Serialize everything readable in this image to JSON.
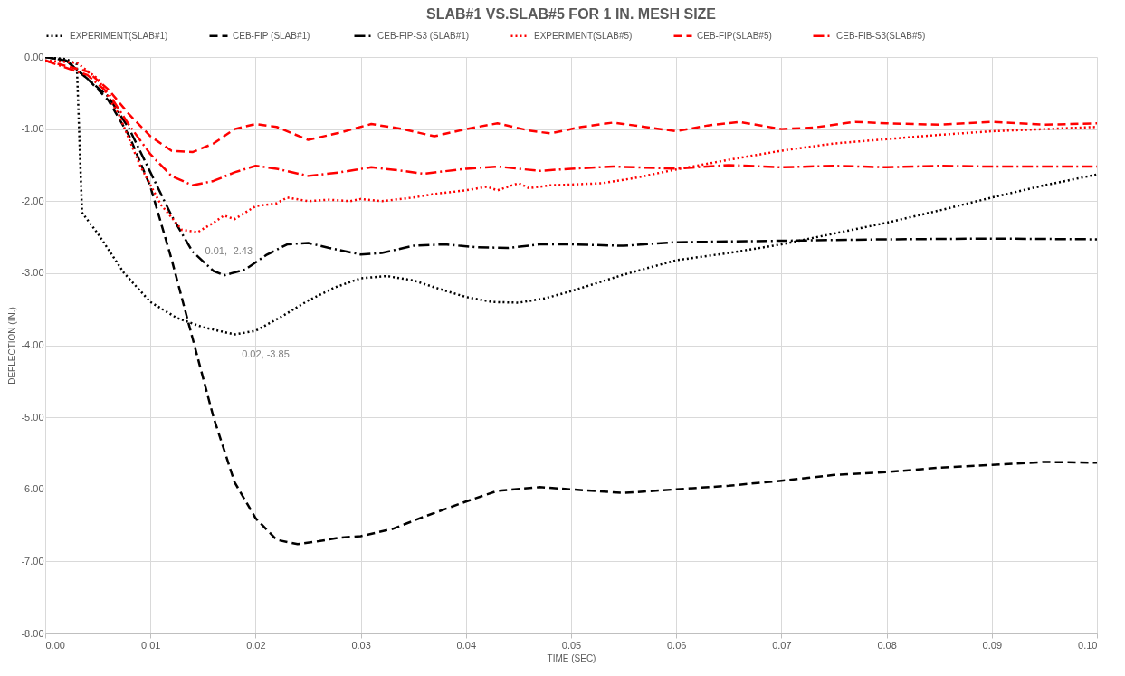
{
  "chart_data": {
    "type": "line",
    "title": "SLAB#1 VS.SLAB#5 FOR 1 IN. MESH SIZE",
    "xlabel": "TIME (SEC)",
    "ylabel": "DEFLECTION (IN.)",
    "xlim": [
      0,
      0.1
    ],
    "ylim": [
      -8,
      0
    ],
    "grid": true,
    "legend": "top",
    "xticks": [
      {
        "value": 0,
        "label": "0.00"
      },
      {
        "value": 0.01,
        "label": "0.01"
      },
      {
        "value": 0.02,
        "label": "0.02"
      },
      {
        "value": 0.03,
        "label": "0.03"
      },
      {
        "value": 0.04,
        "label": "0.04"
      },
      {
        "value": 0.05,
        "label": "0.05"
      },
      {
        "value": 0.06,
        "label": "0.06"
      },
      {
        "value": 0.07,
        "label": "0.07"
      },
      {
        "value": 0.08,
        "label": "0.08"
      },
      {
        "value": 0.09,
        "label": "0.09"
      },
      {
        "value": 0.1,
        "label": "0.10"
      }
    ],
    "yticks": [
      {
        "value": 0,
        "label": "0.00"
      },
      {
        "value": -1,
        "label": "-1.00"
      },
      {
        "value": -2,
        "label": "-2.00"
      },
      {
        "value": -3,
        "label": "-3.00"
      },
      {
        "value": -4,
        "label": "-4.00"
      },
      {
        "value": -5,
        "label": "-5.00"
      },
      {
        "value": -6,
        "label": "-6.00"
      },
      {
        "value": -7,
        "label": "-7.00"
      },
      {
        "value": -8,
        "label": "-8.00"
      }
    ],
    "annotations": [
      {
        "text": "0.01, -2.43",
        "x": 0.0145,
        "y": -2.43
      },
      {
        "text": "0.02, -3.85",
        "x": 0.018,
        "y": -3.85
      }
    ],
    "series": [
      {
        "name": "EXPERIMENT(SLAB#1)",
        "color": "#000000",
        "line_style": "dotted",
        "x": [
          0,
          0.002,
          0.003,
          0.0035,
          0.005,
          0.0075,
          0.01,
          0.0125,
          0.015,
          0.018,
          0.02,
          0.0225,
          0.025,
          0.0275,
          0.03,
          0.0325,
          0.035,
          0.0375,
          0.04,
          0.0425,
          0.045,
          0.0475,
          0.05,
          0.055,
          0.06,
          0.065,
          0.07,
          0.075,
          0.08,
          0.085,
          0.09,
          0.095,
          0.1
        ],
        "values": [
          0,
          -0.03,
          -0.1,
          -2.16,
          -2.45,
          -3.0,
          -3.4,
          -3.62,
          -3.75,
          -3.85,
          -3.8,
          -3.6,
          -3.38,
          -3.2,
          -3.07,
          -3.04,
          -3.1,
          -3.22,
          -3.33,
          -3.4,
          -3.41,
          -3.35,
          -3.25,
          -3.02,
          -2.82,
          -2.72,
          -2.6,
          -2.45,
          -2.3,
          -2.13,
          -1.95,
          -1.78,
          -1.63
        ]
      },
      {
        "name": "CEB-FIP  (SLAB#1)",
        "color": "#000000",
        "line_style": "dashed",
        "x": [
          0,
          0.002,
          0.004,
          0.006,
          0.008,
          0.01,
          0.012,
          0.014,
          0.016,
          0.018,
          0.02,
          0.022,
          0.024,
          0.026,
          0.028,
          0.03,
          0.033,
          0.036,
          0.04,
          0.043,
          0.047,
          0.05,
          0.055,
          0.06,
          0.065,
          0.07,
          0.075,
          0.08,
          0.085,
          0.09,
          0.095,
          0.1
        ],
        "values": [
          0,
          -0.05,
          -0.3,
          -0.6,
          -1.1,
          -1.8,
          -2.8,
          -3.9,
          -5.0,
          -5.9,
          -6.4,
          -6.7,
          -6.76,
          -6.72,
          -6.67,
          -6.65,
          -6.55,
          -6.38,
          -6.17,
          -6.02,
          -5.97,
          -6.0,
          -6.05,
          -6.0,
          -5.95,
          -5.88,
          -5.8,
          -5.76,
          -5.7,
          -5.66,
          -5.62,
          -5.63
        ]
      },
      {
        "name": "CEB-FIP-S3 (SLAB#1)",
        "color": "#000000",
        "line_style": "dashdot",
        "x": [
          0,
          0.002,
          0.004,
          0.006,
          0.008,
          0.01,
          0.012,
          0.014,
          0.016,
          0.017,
          0.019,
          0.021,
          0.023,
          0.025,
          0.027,
          0.03,
          0.032,
          0.035,
          0.038,
          0.041,
          0.044,
          0.047,
          0.05,
          0.055,
          0.06,
          0.07,
          0.08,
          0.09,
          0.1
        ],
        "values": [
          0,
          -0.05,
          -0.3,
          -0.55,
          -1.0,
          -1.6,
          -2.2,
          -2.7,
          -2.97,
          -3.03,
          -2.95,
          -2.75,
          -2.6,
          -2.58,
          -2.65,
          -2.74,
          -2.72,
          -2.62,
          -2.6,
          -2.64,
          -2.65,
          -2.6,
          -2.6,
          -2.62,
          -2.57,
          -2.55,
          -2.53,
          -2.52,
          -2.53
        ]
      },
      {
        "name": "EXPERIMENT(SLAB#5)",
        "color": "#ff0000",
        "line_style": "dotted",
        "x": [
          0,
          0.003,
          0.005,
          0.007,
          0.009,
          0.011,
          0.013,
          0.0145,
          0.016,
          0.017,
          0.018,
          0.02,
          0.022,
          0.023,
          0.025,
          0.027,
          0.029,
          0.03,
          0.032,
          0.035,
          0.037,
          0.04,
          0.042,
          0.043,
          0.045,
          0.046,
          0.048,
          0.05,
          0.053,
          0.056,
          0.06,
          0.063,
          0.066,
          0.07,
          0.075,
          0.08,
          0.085,
          0.09,
          0.095,
          0.1
        ],
        "values": [
          -0.05,
          -0.08,
          -0.3,
          -0.8,
          -1.5,
          -2.05,
          -2.4,
          -2.43,
          -2.3,
          -2.2,
          -2.25,
          -2.07,
          -2.03,
          -1.95,
          -2.0,
          -1.98,
          -2.0,
          -1.97,
          -2.0,
          -1.95,
          -1.9,
          -1.85,
          -1.8,
          -1.85,
          -1.75,
          -1.82,
          -1.78,
          -1.77,
          -1.75,
          -1.68,
          -1.56,
          -1.48,
          -1.4,
          -1.3,
          -1.2,
          -1.14,
          -1.08,
          -1.03,
          -1.0,
          -0.97
        ]
      },
      {
        "name": "CEB-FIP(SLAB#5)",
        "color": "#ff0000",
        "line_style": "dashed",
        "x": [
          0,
          0.004,
          0.006,
          0.008,
          0.01,
          0.012,
          0.014,
          0.016,
          0.018,
          0.02,
          0.022,
          0.025,
          0.028,
          0.031,
          0.034,
          0.037,
          0.04,
          0.043,
          0.046,
          0.048,
          0.051,
          0.054,
          0.057,
          0.06,
          0.063,
          0.066,
          0.07,
          0.073,
          0.077,
          0.08,
          0.085,
          0.09,
          0.095,
          0.1
        ],
        "values": [
          -0.05,
          -0.2,
          -0.45,
          -0.8,
          -1.1,
          -1.3,
          -1.32,
          -1.2,
          -1.0,
          -0.93,
          -0.97,
          -1.15,
          -1.05,
          -0.93,
          -1.0,
          -1.1,
          -1.0,
          -0.92,
          -1.02,
          -1.06,
          -0.97,
          -0.91,
          -0.97,
          -1.03,
          -0.95,
          -0.9,
          -1.0,
          -0.98,
          -0.9,
          -0.92,
          -0.94,
          -0.9,
          -0.94,
          -0.92
        ]
      },
      {
        "name": "CEB-FIB-S3(SLAB#5)",
        "color": "#ff0000",
        "line_style": "dashdot",
        "x": [
          0,
          0.004,
          0.006,
          0.008,
          0.01,
          0.012,
          0.014,
          0.016,
          0.018,
          0.02,
          0.022,
          0.025,
          0.028,
          0.031,
          0.034,
          0.036,
          0.04,
          0.043,
          0.047,
          0.05,
          0.054,
          0.06,
          0.065,
          0.07,
          0.075,
          0.08,
          0.085,
          0.09,
          0.1
        ],
        "values": [
          -0.05,
          -0.25,
          -0.5,
          -0.95,
          -1.35,
          -1.65,
          -1.78,
          -1.72,
          -1.6,
          -1.51,
          -1.55,
          -1.65,
          -1.6,
          -1.53,
          -1.58,
          -1.62,
          -1.55,
          -1.52,
          -1.58,
          -1.55,
          -1.52,
          -1.55,
          -1.5,
          -1.53,
          -1.51,
          -1.53,
          -1.51,
          -1.52,
          -1.52
        ]
      }
    ]
  }
}
